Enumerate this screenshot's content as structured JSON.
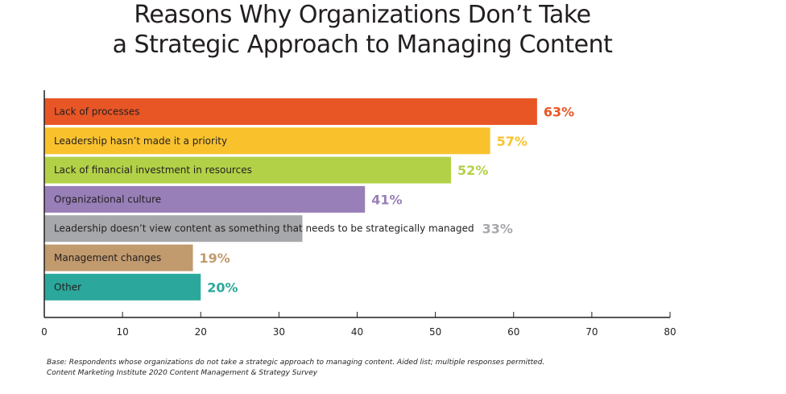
{
  "chart_data": {
    "type": "bar",
    "orientation": "horizontal",
    "title": "Reasons Why Organizations Don’t Take a Strategic Approach to Managing Content",
    "title_lines": [
      "Reasons Why Organizations Don’t Take",
      "a Strategic Approach to Managing Content"
    ],
    "categories": [
      "Lack of processes",
      "Leadership hasn’t made it a priority",
      "Lack of financial investment in resources",
      "Organizational culture",
      "Leadership doesn’t view content as something that needs to be strategically managed",
      "Management changes",
      "Other"
    ],
    "values": [
      63,
      57,
      52,
      41,
      33,
      19,
      20
    ],
    "value_labels": [
      "63%",
      "57%",
      "52%",
      "41%",
      "33%",
      "19%",
      "20%"
    ],
    "colors": [
      "#e85626",
      "#f9c22d",
      "#b3d147",
      "#987fb8",
      "#a7a8ab",
      "#c19a6e",
      "#2ba89b"
    ],
    "xlabel": "",
    "ylabel": "",
    "xlim": [
      0,
      80
    ],
    "xticks": [
      0,
      10,
      20,
      30,
      40,
      50,
      60,
      70,
      80
    ],
    "grid": false,
    "legend": "none",
    "footnotes": [
      "Base: Respondents whose organizations do not take a strategic approach to managing content. Aided list; multiple responses permitted.",
      "Content Marketing Institute 2020 Content Management & Strategy Survey"
    ]
  }
}
